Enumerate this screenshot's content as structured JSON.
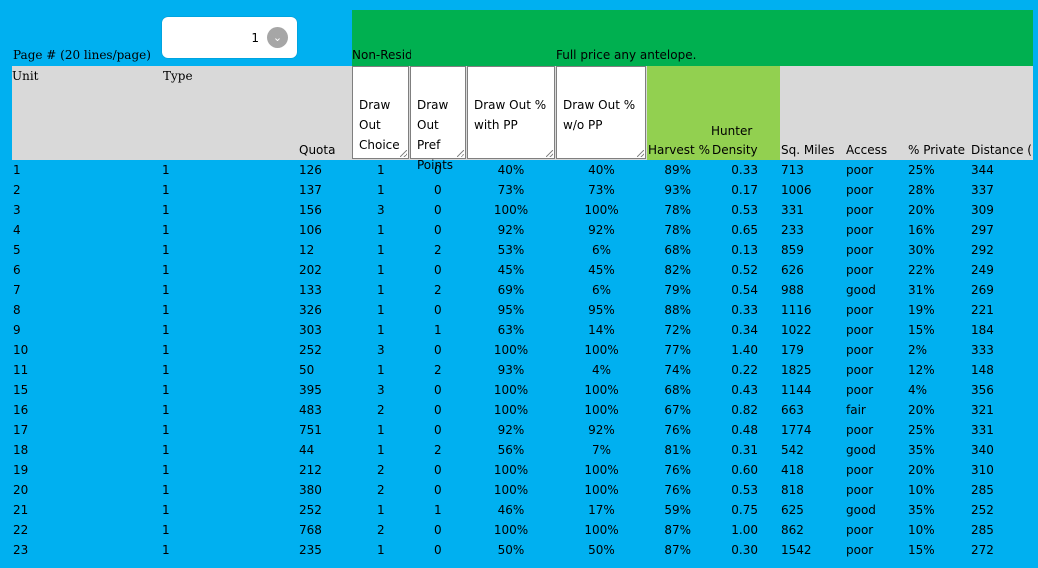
{
  "page_selector": {
    "label": "Page # (20 lines/page)",
    "value": "1"
  },
  "banner": {
    "left_text": "Non-Resident",
    "right_text": "Full price any antelope."
  },
  "headers": {
    "unit": "Unit",
    "type": "Type",
    "quota": "Quota",
    "draw_out_choice": "Draw\nOut\nChoice",
    "draw_out_pref_points": "Draw\nOut\nPref\nPoints",
    "draw_out_with_pp": "Draw Out %\nwith PP",
    "draw_out_without_pp": "Draw Out %\nw/o PP",
    "harvest_pct": "Harvest %",
    "hunter": "Hunter",
    "density": "Density",
    "sq_miles": "Sq. Miles",
    "access": "Access",
    "pct_private": "% Private",
    "distance": "Distance ("
  },
  "rows": [
    [
      "1",
      "1",
      "126",
      "1",
      "0",
      "40%",
      "40%",
      "89%",
      "0.33",
      "713",
      "poor",
      "25%",
      "344"
    ],
    [
      "2",
      "1",
      "137",
      "1",
      "0",
      "73%",
      "73%",
      "93%",
      "0.17",
      "1006",
      "poor",
      "28%",
      "337"
    ],
    [
      "3",
      "1",
      "156",
      "3",
      "0",
      "100%",
      "100%",
      "78%",
      "0.53",
      "331",
      "poor",
      "20%",
      "309"
    ],
    [
      "4",
      "1",
      "106",
      "1",
      "0",
      "92%",
      "92%",
      "78%",
      "0.65",
      "233",
      "poor",
      "16%",
      "297"
    ],
    [
      "5",
      "1",
      "12",
      "1",
      "2",
      "53%",
      "6%",
      "68%",
      "0.13",
      "859",
      "poor",
      "30%",
      "292"
    ],
    [
      "6",
      "1",
      "202",
      "1",
      "0",
      "45%",
      "45%",
      "82%",
      "0.52",
      "626",
      "poor",
      "22%",
      "249"
    ],
    [
      "7",
      "1",
      "133",
      "1",
      "2",
      "69%",
      "6%",
      "79%",
      "0.54",
      "988",
      "good",
      "31%",
      "269"
    ],
    [
      "8",
      "1",
      "326",
      "1",
      "0",
      "95%",
      "95%",
      "88%",
      "0.33",
      "1116",
      "poor",
      "19%",
      "221"
    ],
    [
      "9",
      "1",
      "303",
      "1",
      "1",
      "63%",
      "14%",
      "72%",
      "0.34",
      "1022",
      "poor",
      "15%",
      "184"
    ],
    [
      "10",
      "1",
      "252",
      "3",
      "0",
      "100%",
      "100%",
      "77%",
      "1.40",
      "179",
      "poor",
      "2%",
      "333"
    ],
    [
      "11",
      "1",
      "50",
      "1",
      "2",
      "93%",
      "4%",
      "74%",
      "0.22",
      "1825",
      "poor",
      "12%",
      "148"
    ],
    [
      "15",
      "1",
      "395",
      "3",
      "0",
      "100%",
      "100%",
      "68%",
      "0.43",
      "1144",
      "poor",
      "4%",
      "356"
    ],
    [
      "16",
      "1",
      "483",
      "2",
      "0",
      "100%",
      "100%",
      "67%",
      "0.82",
      "663",
      "fair",
      "20%",
      "321"
    ],
    [
      "17",
      "1",
      "751",
      "1",
      "0",
      "92%",
      "92%",
      "76%",
      "0.48",
      "1774",
      "poor",
      "25%",
      "331"
    ],
    [
      "18",
      "1",
      "44",
      "1",
      "2",
      "56%",
      "7%",
      "81%",
      "0.31",
      "542",
      "good",
      "35%",
      "340"
    ],
    [
      "19",
      "1",
      "212",
      "2",
      "0",
      "100%",
      "100%",
      "76%",
      "0.60",
      "418",
      "poor",
      "20%",
      "310"
    ],
    [
      "20",
      "1",
      "380",
      "2",
      "0",
      "100%",
      "100%",
      "76%",
      "0.53",
      "818",
      "poor",
      "10%",
      "285"
    ],
    [
      "21",
      "1",
      "252",
      "1",
      "1",
      "46%",
      "17%",
      "59%",
      "0.75",
      "625",
      "good",
      "35%",
      "252"
    ],
    [
      "22",
      "1",
      "768",
      "2",
      "0",
      "100%",
      "100%",
      "87%",
      "1.00",
      "862",
      "poor",
      "10%",
      "285"
    ],
    [
      "23",
      "1",
      "235",
      "1",
      "0",
      "50%",
      "50%",
      "87%",
      "0.30",
      "1542",
      "poor",
      "15%",
      "272"
    ]
  ],
  "colors": {
    "background": "#00b0f0",
    "banner": "#00b050",
    "header_gray": "#d9d9d9",
    "harvest_header": "#92d050"
  }
}
